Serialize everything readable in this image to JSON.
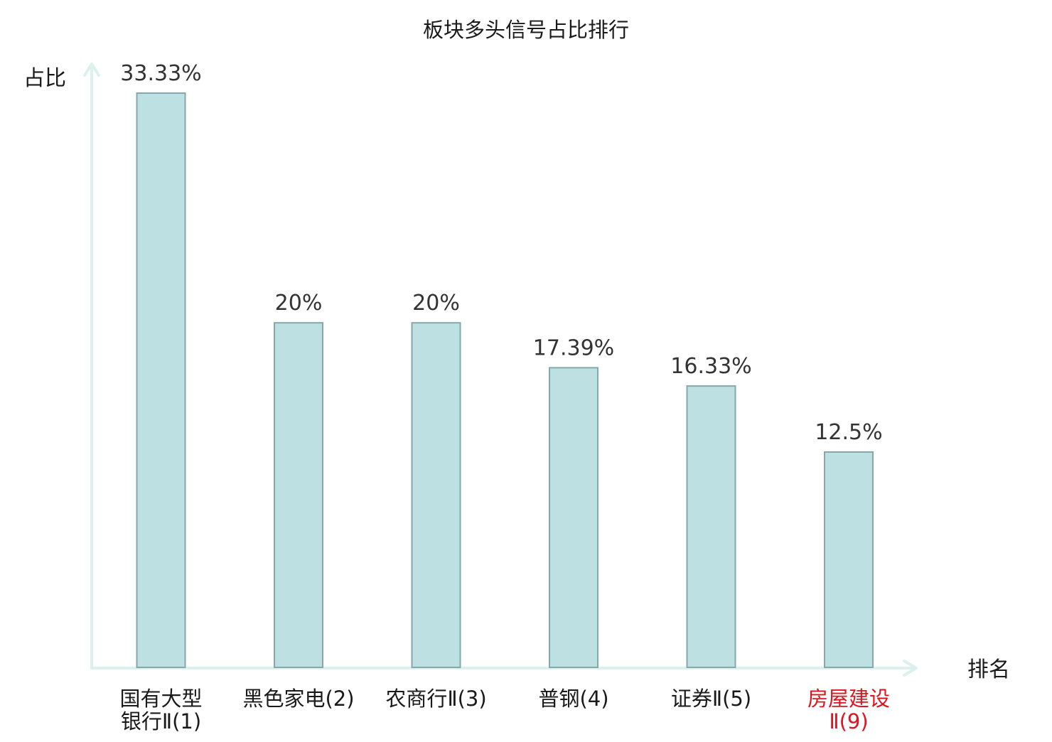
{
  "chart_data": {
    "type": "bar",
    "title": "板块多头信号占比排行",
    "ylabel": "占比",
    "xlabel": "排名",
    "ylim": [
      0,
      35
    ],
    "grid": false,
    "legend": "none",
    "categories": [
      {
        "name": "国有大型银行Ⅱ",
        "rank": "(1)",
        "lines": [
          "国有大型",
          "银行Ⅱ(1)"
        ],
        "highlight": false
      },
      {
        "name": "黑色家电",
        "rank": "(2)",
        "lines": [
          "黑色家电(2)"
        ],
        "highlight": false
      },
      {
        "name": "农商行Ⅱ",
        "rank": "(3)",
        "lines": [
          "农商行Ⅱ(3)"
        ],
        "highlight": false
      },
      {
        "name": "普钢",
        "rank": "(4)",
        "lines": [
          "普钢(4)"
        ],
        "highlight": false
      },
      {
        "name": "证券Ⅱ",
        "rank": "(5)",
        "lines": [
          "证券Ⅱ(5)"
        ],
        "highlight": false
      },
      {
        "name": "房屋建设Ⅱ",
        "rank": "(9)",
        "lines": [
          "房屋建设",
          "Ⅱ(9)"
        ],
        "highlight": true
      }
    ],
    "values": [
      33.33,
      20,
      20,
      17.39,
      16.33,
      12.5
    ],
    "value_labels": [
      "33.33%",
      "20%",
      "20%",
      "17.39%",
      "16.33%",
      "12.5%"
    ],
    "colors": {
      "bar_fill": "#bde0e3",
      "bar_stroke": "#86a8ab",
      "axis": "#dcf0ee",
      "highlight_text": "#e0141e",
      "text": "#1a1a1a",
      "value_text": "#333333"
    }
  }
}
